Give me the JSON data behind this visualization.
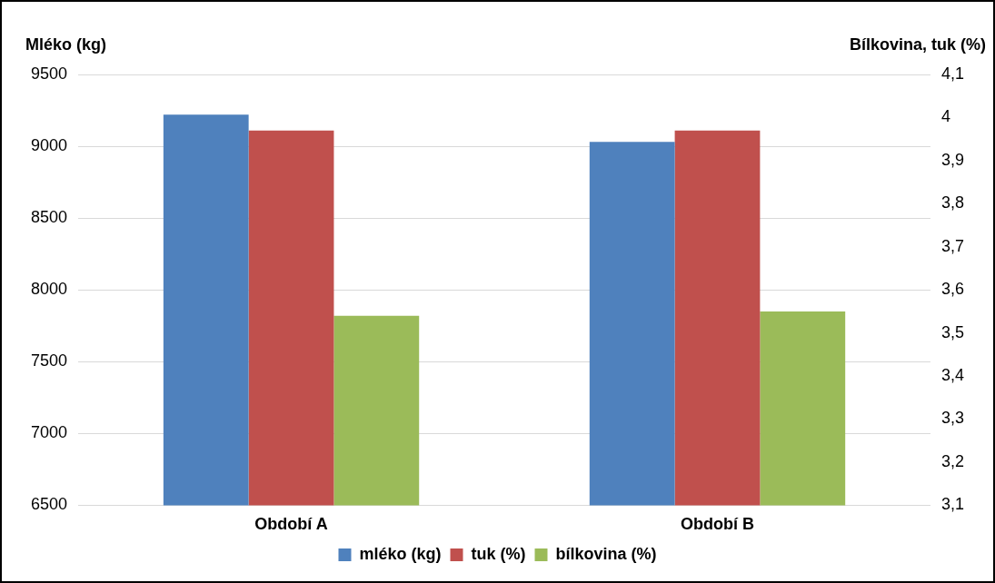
{
  "chart_data": {
    "type": "bar",
    "ylabel": "Mléko (kg)",
    "y2label": "Bílkovina, tuk (%)",
    "categories": [
      "Období A",
      "Období B"
    ],
    "series": [
      {
        "name": "mléko (kg)",
        "color": "#4f81bd",
        "values": [
          9220,
          9030
        ]
      },
      {
        "name": "tuk (%)",
        "color": "#c0504d",
        "values": [
          3.97,
          3.97
        ],
        "axis": "y2"
      },
      {
        "name": "bílkovina (%)",
        "color": "#9bbb59",
        "values": [
          3.54,
          3.55
        ],
        "axis": "y2"
      }
    ],
    "ylim": [
      6500,
      9500
    ],
    "yticks": [
      6500,
      7000,
      7500,
      8000,
      8500,
      9000,
      9500
    ],
    "y2lim": [
      3.1,
      4.1
    ],
    "y2ticks": [
      {
        "value": 3.1,
        "label": "3,1"
      },
      {
        "value": 3.2,
        "label": "3,2"
      },
      {
        "value": 3.3,
        "label": "3,3"
      },
      {
        "value": 3.4,
        "label": "3,4"
      },
      {
        "value": 3.5,
        "label": "3,5"
      },
      {
        "value": 3.6,
        "label": "3,6"
      },
      {
        "value": 3.7,
        "label": "3,7"
      },
      {
        "value": 3.8,
        "label": "3,8"
      },
      {
        "value": 3.9,
        "label": "3,9"
      },
      {
        "value": 4,
        "label": "4"
      },
      {
        "value": 4.1,
        "label": "4,1"
      }
    ],
    "grid": "y",
    "legend": "bottom"
  }
}
